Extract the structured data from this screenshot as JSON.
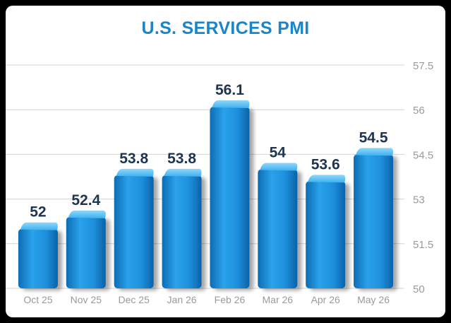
{
  "chart_data": {
    "type": "bar",
    "title": "U.S. SERVICES PMI",
    "xlabel": "",
    "ylabel": "",
    "categories": [
      "Oct 25",
      "Nov 25",
      "Dec 25",
      "Jan 26",
      "Feb 26",
      "Mar 26",
      "Apr 26",
      "May 26"
    ],
    "values": [
      52,
      52.4,
      53.8,
      53.8,
      56.1,
      54,
      53.6,
      54.5
    ],
    "value_labels": [
      "52",
      "52.4",
      "53.8",
      "53.8",
      "56.1",
      "54",
      "53.6",
      "54.5"
    ],
    "ylim": [
      50,
      57.5
    ],
    "yticks": [
      "50",
      "51.5",
      "53",
      "54.5",
      "56",
      "57.5"
    ],
    "ytick_values": [
      50,
      51.5,
      53,
      54.5,
      56,
      57.5
    ],
    "grid": true,
    "legend": "none",
    "y_axis_side": "right",
    "colors": {
      "bar": "#1f8fdc",
      "bar_light": "#5cc0f5",
      "bar_dark": "#0a5fa3",
      "title": "#1a86c8",
      "value_label": "#1d3550",
      "tick_label": "#9a9a9a",
      "grid": "#d4d4d4"
    }
  }
}
